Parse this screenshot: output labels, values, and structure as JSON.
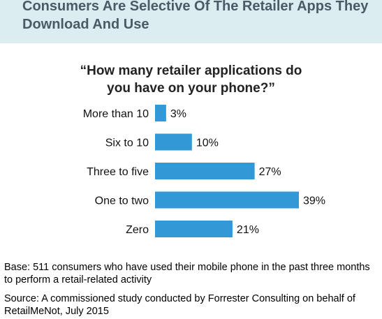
{
  "header": {
    "title": "Consumers Are Selective Of The Retailer Apps They Download And Use"
  },
  "chart_data": {
    "type": "bar",
    "orientation": "horizontal",
    "title_lines": [
      "“How many retailer applications do",
      "you have on your phone?”"
    ],
    "categories": [
      "More than 10",
      "Six to 10",
      "Three to five",
      "One to two",
      "Zero"
    ],
    "values": [
      3,
      10,
      27,
      39,
      21
    ],
    "value_labels": [
      "3%",
      "10%",
      "27%",
      "39%",
      "21%"
    ],
    "unit": "%",
    "xlim": [
      0,
      39
    ],
    "bar_color": "#3399d6",
    "grid": false,
    "legend": "none"
  },
  "footer": {
    "base": "Base: 511 consumers who have used their mobile phone in the past three months to perform a retail-related activity",
    "source": "Source: A commissioned study conducted by Forrester Consulting on behalf of RetailMeNot, July 2015"
  }
}
